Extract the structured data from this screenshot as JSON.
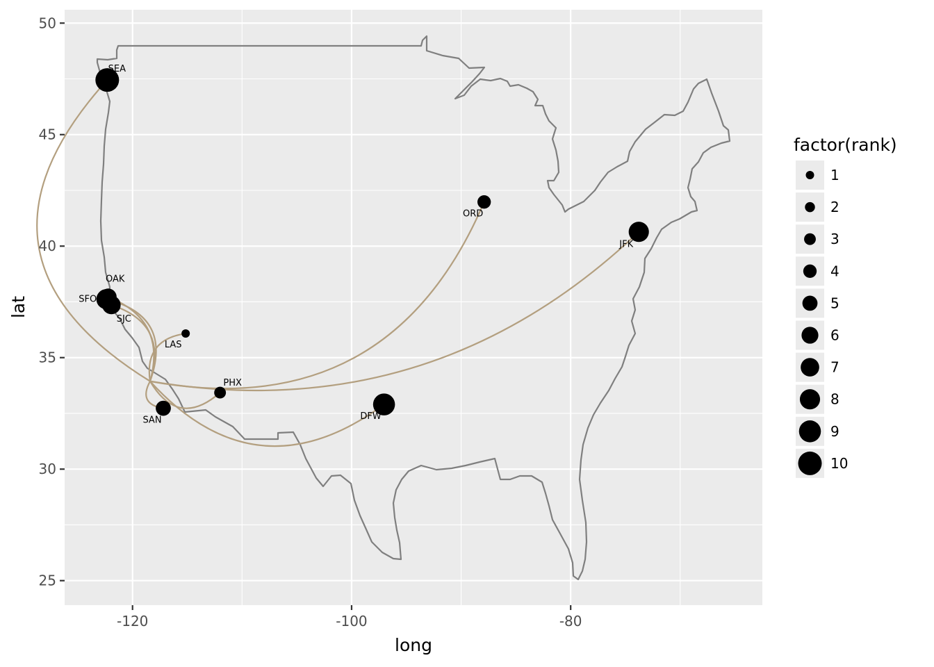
{
  "chart_data": {
    "type": "map",
    "xlabel": "long",
    "ylabel": "lat",
    "xlim": [
      -126.2,
      -62.5
    ],
    "ylim": [
      23.9,
      50.6
    ],
    "x_ticks": [
      -120,
      -100,
      -80
    ],
    "y_ticks": [
      25,
      30,
      35,
      40,
      45,
      50
    ],
    "grid": true,
    "legend": {
      "title": "factor(rank)",
      "position": "right",
      "levels": [
        "1",
        "2",
        "3",
        "4",
        "5",
        "6",
        "7",
        "8",
        "9",
        "10"
      ]
    },
    "colors": {
      "panel": "#ebebeb",
      "grid": "#ffffff",
      "outline": "#7f7f7f",
      "route": "#b39f7f",
      "point": "#000000"
    },
    "hub": {
      "long": -118.4,
      "lat": 33.94
    },
    "airports": [
      {
        "code": "SEA",
        "long": -122.31,
        "lat": 47.45,
        "rank": 10,
        "route_bulge": -0.6
      },
      {
        "code": "OAK",
        "long": -122.22,
        "lat": 37.72,
        "rank": 6,
        "route_bulge": 0.45
      },
      {
        "code": "SFO",
        "long": -122.38,
        "lat": 37.62,
        "rank": 8,
        "route_bulge": 0.55
      },
      {
        "code": "SJC",
        "long": -121.93,
        "lat": 37.36,
        "rank": 7,
        "route_bulge": 0.5
      },
      {
        "code": "LAS",
        "long": -115.15,
        "lat": 36.08,
        "rank": 1,
        "route_bulge": -0.5
      },
      {
        "code": "PHX",
        "long": -112.01,
        "lat": 33.43,
        "rank": 3,
        "route_bulge": 0.6
      },
      {
        "code": "SAN",
        "long": -117.19,
        "lat": 32.73,
        "rank": 5,
        "route_bulge": 0.7
      },
      {
        "code": "DFW",
        "long": -97.04,
        "lat": 32.9,
        "rank": 9,
        "route_bulge": 0.45
      },
      {
        "code": "ORD",
        "long": -87.9,
        "lat": 41.98,
        "rank": 4,
        "route_bulge": 0.4
      },
      {
        "code": "JFK",
        "long": -73.78,
        "lat": 40.64,
        "rank": 8,
        "route_bulge": 0.25
      }
    ]
  }
}
